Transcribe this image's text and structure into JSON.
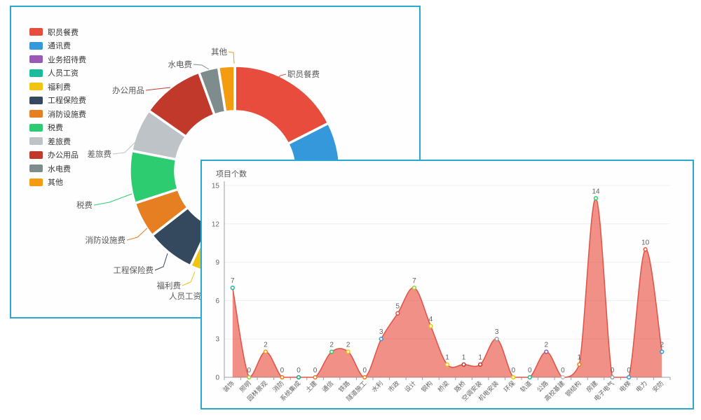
{
  "page": {
    "panel_border_color": "#28a8d2",
    "background": "#ffffff"
  },
  "legend": {
    "items": [
      {
        "label": "职员餐费",
        "color": "#e74c3c"
      },
      {
        "label": "通讯费",
        "color": "#3498db"
      },
      {
        "label": "业务招待费",
        "color": "#9b59b6"
      },
      {
        "label": "人员工资",
        "color": "#1abc9c"
      },
      {
        "label": "福利费",
        "color": "#f1c40f"
      },
      {
        "label": "工程保险费",
        "color": "#34495e"
      },
      {
        "label": "消防设施费",
        "color": "#e67e22"
      },
      {
        "label": "税费",
        "color": "#2ecc71"
      },
      {
        "label": "差旅费",
        "color": "#bdc3c7"
      },
      {
        "label": "办公用品",
        "color": "#c0392b"
      },
      {
        "label": "水电费",
        "color": "#7f8c8d"
      },
      {
        "label": "其他",
        "color": "#f39c12"
      }
    ]
  },
  "area_chart": {
    "title": "项目个数"
  },
  "chart_data": [
    {
      "type": "pie",
      "title": "",
      "legend_position": "left",
      "donut": true,
      "slices": [
        {
          "label": "职员餐费",
          "color": "#e74c3c",
          "start": 0,
          "end": 63
        },
        {
          "label": "通讯费",
          "color": "#3498db",
          "start": 63,
          "end": 97
        },
        {
          "label": "业务招待费",
          "color": "#9b59b6",
          "start": 97,
          "end": 105
        },
        {
          "label": "人员工资",
          "color": "#1abc9c",
          "start": 105,
          "end": 197
        },
        {
          "label": "福利费",
          "color": "#f1c40f",
          "start": 197,
          "end": 205
        },
        {
          "label": "工程保险费",
          "color": "#34495e",
          "start": 205,
          "end": 232
        },
        {
          "label": "消防设施费",
          "color": "#e67e22",
          "start": 232,
          "end": 252
        },
        {
          "label": "税费",
          "color": "#2ecc71",
          "start": 252,
          "end": 281
        },
        {
          "label": "差旅费",
          "color": "#bdc3c7",
          "start": 281,
          "end": 305
        },
        {
          "label": "办公用品",
          "color": "#c0392b",
          "start": 305,
          "end": 340
        },
        {
          "label": "水电费",
          "color": "#7f8c8d",
          "start": 340,
          "end": 351
        },
        {
          "label": "其他",
          "color": "#f39c12",
          "start": 351,
          "end": 360
        }
      ]
    },
    {
      "type": "area",
      "title": "项目个数",
      "smooth": true,
      "grid": true,
      "line_color": "#e0564a",
      "fill_color": "#e74c3c",
      "fill_opacity": 0.62,
      "ylim": [
        0,
        15
      ],
      "yticks": [
        0,
        3,
        6,
        9,
        12,
        15
      ],
      "categories": [
        "装饰",
        "照明",
        "园林景观",
        "消防",
        "系统集成",
        "土建",
        "通信",
        "铁路",
        "隧道施工",
        "水利",
        "市政",
        "设计",
        "钢构",
        "桥梁",
        "路桥",
        "空调安装",
        "机电安装",
        "环保",
        "轨道",
        "公路",
        "高校基建",
        "钢结构",
        "房建",
        "电子电气",
        "电梯",
        "电力",
        "安防"
      ],
      "values": [
        7,
        0,
        2,
        0,
        0,
        0,
        2,
        2,
        0,
        3,
        5,
        7,
        4,
        1,
        1,
        1,
        3,
        0,
        0,
        2,
        0,
        1,
        14,
        0,
        0,
        10,
        2
      ],
      "point_colors": [
        "#1abc9c",
        "#9acd32",
        "#f39c12",
        "#e67e22",
        "#16a085",
        "#e67e22",
        "#2ecc71",
        "#f1c40f",
        "#e67e22",
        "#3498db",
        "#e74c3c",
        "#9acd32",
        "#f1c40f",
        "#f1c40f",
        "#c0392b",
        "#c0392b",
        "#95a5a6",
        "#f1c40f",
        "#1abc9c",
        "#9b59b6",
        "#bdc3c7",
        "#e67e22",
        "#2ecc71",
        "#95a5a6",
        "#3498db",
        "#e74c3c",
        "#3498db"
      ]
    }
  ]
}
